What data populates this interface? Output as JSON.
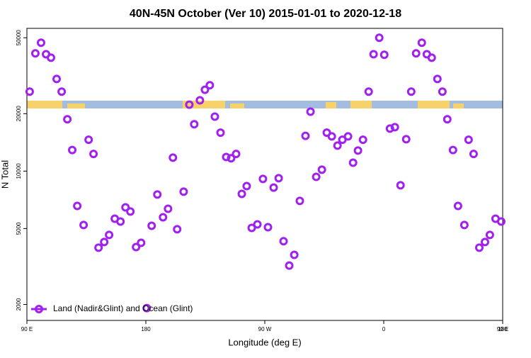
{
  "chart_data": {
    "type": "scatter",
    "title": "40N-45N October (Ver 10)   2015-01-01 to 2020-12-18",
    "x_label": "Longitude (deg E)",
    "y_label": "N Total",
    "log_y": true,
    "ylim": [
      1650,
      56000
    ],
    "xlim": [
      90,
      450
    ],
    "yticks": [
      2000,
      5000,
      10000,
      20000,
      50000
    ],
    "xticks": [
      {
        "value": 90,
        "label": "90 E"
      },
      {
        "value": 180,
        "label": "180"
      },
      {
        "value": 270,
        "label": "90 W"
      },
      {
        "value": 360,
        "label": "0"
      },
      {
        "value": 450,
        "label": "90 E"
      },
      {
        "value": 540,
        "label": "180"
      }
    ],
    "series": [
      {
        "name": "Land (Nadir&Glint) and Ocean (Glint)",
        "color": "#a020f0",
        "x": [
          92.1,
          96.4,
          100.7,
          104.5,
          108.2,
          112.5,
          116.3,
          120.6,
          124.3,
          128.1,
          132.9,
          136.7,
          140.4,
          144.2,
          148.5,
          152.2,
          156.5,
          160.8,
          164.6,
          168.3,
          172.6,
          176.4,
          180.7,
          184.4,
          188.7,
          193.0,
          196.8,
          200.5,
          203.7,
          208.6,
          212.9,
          216.6,
          220.9,
          224.7,
          228.4,
          232.2,
          236.5,
          240.8,
          244.5,
          248.3,
          252.6,
          256.3,
          260.1,
          264.4,
          268.6,
          272.4,
          276.7,
          280.5,
          284.2,
          288.5,
          292.3,
          296.5,
          300.8,
          304.6,
          308.9,
          313.2,
          316.9,
          320.7,
          325.0,
          328.7,
          333.0,
          336.8,
          340.5,
          344.3,
          348.6,
          352.3,
          356.6,
          360.4,
          364.7,
          368.4,
          372.7,
          377.0,
          380.8,
          384.5,
          388.8,
          392.6,
          396.3,
          400.6,
          404.4,
          408.1,
          412.4,
          416.2,
          421.0,
          424.2,
          428.0,
          432.3,
          436.6,
          440.3,
          444.6,
          448.9
        ],
        "values": [
          26100,
          41400,
          47100,
          41000,
          39300,
          30400,
          26100,
          18700,
          12900,
          6570,
          5220,
          14600,
          12300,
          3970,
          4250,
          4630,
          5630,
          5440,
          6460,
          6140,
          4000,
          4210,
          1915,
          5170,
          7540,
          5730,
          6350,
          11770,
          4960,
          7800,
          22300,
          17600,
          23500,
          26700,
          28200,
          19300,
          15900,
          11860,
          11680,
          12300,
          7600,
          8350,
          5040,
          5260,
          9100,
          5080,
          8200,
          9180,
          4290,
          3200,
          3640,
          6980,
          15300,
          20500,
          9330,
          10170,
          15900,
          15200,
          13600,
          14600,
          15200,
          11070,
          12820,
          14600,
          26100,
          41000,
          50000,
          40700,
          16700,
          17000,
          8430,
          14700,
          26100,
          41400,
          47100,
          41000,
          39300,
          30400,
          26100,
          18700,
          12900,
          6570,
          5220,
          14600,
          12300,
          3970,
          4250,
          4630,
          5630,
          5440
        ]
      }
    ],
    "legend": "bottom-left"
  }
}
